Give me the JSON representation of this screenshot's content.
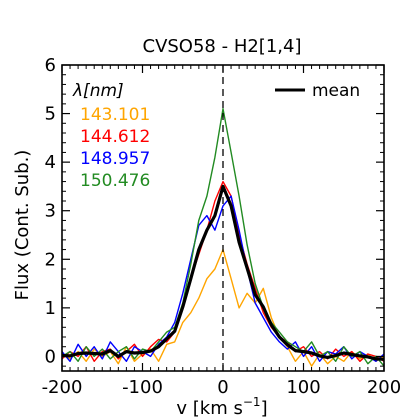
{
  "chart_data": {
    "type": "line",
    "title": "CVSO58 - H2[1,4]",
    "xlabel": "v [km s",
    "xlabel_sup": "−1",
    "xlabel_end": "]",
    "ylabel": "Flux (Cont. Sub.)",
    "xlim": [
      -200,
      200
    ],
    "ylim": [
      -0.3,
      6
    ],
    "xticks": [
      -200,
      -100,
      0,
      100,
      200
    ],
    "yticks": [
      0,
      1,
      2,
      3,
      4,
      5,
      6
    ],
    "grid": false,
    "vline_x": 0,
    "legend_title": "λ[nm]",
    "legend_placement": "top-left",
    "mean_legend_label": "mean",
    "mean_legend_placement": "top-right",
    "series": [
      {
        "name": "143.101",
        "color": "#FFA500",
        "x": [
          -200,
          -190,
          -180,
          -170,
          -160,
          -150,
          -140,
          -130,
          -120,
          -110,
          -100,
          -90,
          -80,
          -70,
          -60,
          -50,
          -40,
          -30,
          -20,
          -10,
          0,
          10,
          20,
          30,
          40,
          50,
          60,
          70,
          80,
          90,
          100,
          110,
          120,
          130,
          140,
          150,
          160,
          170,
          180,
          190,
          200
        ],
        "y": [
          0.05,
          -0.05,
          0.1,
          -0.1,
          0.15,
          0.0,
          0.1,
          -0.15,
          0.2,
          -0.1,
          0.05,
          0.15,
          -0.1,
          0.25,
          0.3,
          0.7,
          0.9,
          1.2,
          1.6,
          1.8,
          2.2,
          1.6,
          1.0,
          1.3,
          1.1,
          1.4,
          0.8,
          0.4,
          0.2,
          -0.1,
          0.1,
          -0.2,
          0.05,
          -0.15,
          0.0,
          -0.1,
          0.1,
          -0.05,
          0.05,
          -0.1,
          0.0
        ]
      },
      {
        "name": "144.612",
        "color": "#FF0000",
        "x": [
          -200,
          -190,
          -180,
          -170,
          -160,
          -150,
          -140,
          -130,
          -120,
          -110,
          -100,
          -90,
          -80,
          -70,
          -60,
          -50,
          -40,
          -30,
          -20,
          -10,
          0,
          10,
          20,
          30,
          40,
          50,
          60,
          70,
          80,
          90,
          100,
          110,
          120,
          130,
          140,
          150,
          160,
          170,
          180,
          190,
          200
        ],
        "y": [
          -0.05,
          0.1,
          0.0,
          0.2,
          -0.1,
          0.1,
          0.15,
          -0.05,
          0.1,
          0.25,
          0.0,
          0.2,
          0.35,
          0.3,
          0.5,
          1.0,
          1.6,
          2.1,
          2.6,
          3.2,
          3.6,
          3.3,
          2.5,
          1.9,
          1.4,
          0.9,
          0.6,
          0.4,
          0.3,
          0.1,
          0.2,
          0.0,
          0.1,
          -0.05,
          0.15,
          0.0,
          0.1,
          -0.1,
          0.05,
          0.0,
          -0.1
        ]
      },
      {
        "name": "148.957",
        "color": "#0000FF",
        "x": [
          -200,
          -190,
          -180,
          -170,
          -160,
          -150,
          -140,
          -130,
          -120,
          -110,
          -100,
          -90,
          -80,
          -70,
          -60,
          -50,
          -40,
          -30,
          -20,
          -10,
          0,
          10,
          20,
          30,
          40,
          50,
          60,
          70,
          80,
          90,
          100,
          110,
          120,
          130,
          140,
          150,
          160,
          170,
          180,
          190,
          200
        ],
        "y": [
          0.1,
          -0.1,
          0.25,
          0.0,
          0.2,
          -0.05,
          0.3,
          0.1,
          -0.1,
          0.2,
          0.1,
          0.0,
          0.25,
          0.4,
          0.7,
          1.3,
          2.0,
          2.7,
          2.9,
          2.6,
          3.1,
          3.3,
          2.6,
          1.8,
          1.1,
          0.8,
          0.5,
          0.3,
          0.15,
          0.3,
          0.0,
          0.2,
          -0.1,
          0.1,
          0.05,
          0.2,
          -0.05,
          0.1,
          0.0,
          -0.1,
          0.05
        ]
      },
      {
        "name": "150.476",
        "color": "#228B22",
        "x": [
          -200,
          -190,
          -180,
          -170,
          -160,
          -150,
          -140,
          -130,
          -120,
          -110,
          -100,
          -90,
          -80,
          -70,
          -60,
          -50,
          -40,
          -30,
          -20,
          -10,
          0,
          10,
          20,
          30,
          40,
          50,
          60,
          70,
          80,
          90,
          100,
          110,
          120,
          130,
          140,
          150,
          160,
          170,
          180,
          190,
          200
        ],
        "y": [
          0.0,
          0.1,
          -0.1,
          0.2,
          0.0,
          0.15,
          -0.05,
          0.1,
          0.2,
          -0.05,
          0.15,
          0.1,
          0.3,
          0.5,
          0.6,
          1.1,
          1.9,
          2.8,
          3.3,
          4.1,
          5.1,
          4.2,
          3.3,
          2.3,
          1.5,
          1.0,
          0.7,
          0.5,
          0.3,
          0.2,
          0.1,
          0.3,
          0.0,
          0.1,
          -0.1,
          0.2,
          0.0,
          0.1,
          -0.15,
          0.0,
          -0.2
        ]
      },
      {
        "name": "mean",
        "color": "#000000",
        "bold": true,
        "x": [
          -200,
          -190,
          -180,
          -170,
          -160,
          -150,
          -140,
          -130,
          -120,
          -110,
          -100,
          -90,
          -80,
          -70,
          -60,
          -50,
          -40,
          -30,
          -20,
          -10,
          0,
          10,
          20,
          30,
          40,
          50,
          60,
          70,
          80,
          90,
          100,
          110,
          120,
          130,
          140,
          150,
          160,
          170,
          180,
          190,
          200
        ],
        "y": [
          0.02,
          0.01,
          0.06,
          0.07,
          0.06,
          0.05,
          0.12,
          0.0,
          0.1,
          0.07,
          0.08,
          0.11,
          0.2,
          0.36,
          0.52,
          1.02,
          1.6,
          2.2,
          2.6,
          2.9,
          3.5,
          3.1,
          2.35,
          1.82,
          1.27,
          1.02,
          0.65,
          0.4,
          0.24,
          0.12,
          0.1,
          0.07,
          0.01,
          -0.02,
          0.02,
          0.07,
          0.04,
          0.01,
          -0.01,
          -0.05,
          -0.06
        ]
      }
    ]
  }
}
